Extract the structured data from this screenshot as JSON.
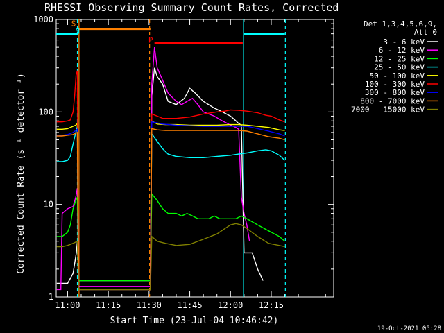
{
  "chart_data": {
    "type": "line",
    "title": "RHESSI Observing Summary Count Rates, Corrected",
    "xlabel": "Start Time (23-Jul-04 10:46:42)",
    "ylabel": "Corrected Count Rate (s⁻¹ detector⁻¹)",
    "y_scale": "log",
    "ylim": [
      1,
      1000
    ],
    "xlim_minutes": [
      -4.2,
      98
    ],
    "x_ticks": [
      {
        "label": "11:00",
        "m": 0
      },
      {
        "label": "11:15",
        "m": 15
      },
      {
        "label": "11:30",
        "m": 30
      },
      {
        "label": "11:45",
        "m": 45
      },
      {
        "label": "12:00",
        "m": 60
      },
      {
        "label": "12:15",
        "m": 75
      }
    ],
    "y_ticks": [
      {
        "label": "1",
        "v": 1
      },
      {
        "label": "10",
        "v": 10
      },
      {
        "label": "100",
        "v": 100
      },
      {
        "label": "1000",
        "v": 1000
      }
    ],
    "legend": {
      "header": [
        "Det 1,3,4,5,6,9,",
        "Att 0"
      ],
      "placement": "right"
    },
    "series": [
      {
        "name": "3 - 6 keV",
        "color": "#ffffff",
        "points": [
          [
            -4,
            1.4
          ],
          [
            0,
            1.4
          ],
          [
            2,
            1.8
          ],
          [
            2.8,
            2.5
          ],
          [
            3.2,
            3
          ],
          [
            3.6,
            4
          ],
          [
            4,
            1.5
          ],
          [
            30.5,
            1.5
          ],
          [
            31,
            150
          ],
          [
            32,
            300
          ],
          [
            33,
            240
          ],
          [
            35,
            200
          ],
          [
            37,
            130
          ],
          [
            40,
            120
          ],
          [
            43,
            140
          ],
          [
            45,
            180
          ],
          [
            47,
            160
          ],
          [
            50,
            130
          ],
          [
            54,
            110
          ],
          [
            57,
            100
          ],
          [
            60,
            90
          ],
          [
            62,
            80
          ],
          [
            63,
            75
          ],
          [
            64,
            72
          ],
          [
            65,
            3
          ],
          [
            68,
            3
          ],
          [
            70,
            2
          ],
          [
            72,
            1.5
          ]
        ]
      },
      {
        "name": "6 - 12 keV",
        "color": "#ff00ff",
        "points": [
          [
            -4,
            1.2
          ],
          [
            -2.5,
            1.2
          ],
          [
            -2,
            8
          ],
          [
            0,
            9
          ],
          [
            2,
            9.5
          ],
          [
            3,
            12
          ],
          [
            3.6,
            15
          ],
          [
            4,
            1.3
          ],
          [
            30.5,
            1.3
          ],
          [
            31,
            200
          ],
          [
            32,
            500
          ],
          [
            33,
            300
          ],
          [
            35,
            220
          ],
          [
            37,
            160
          ],
          [
            40,
            130
          ],
          [
            42,
            120
          ],
          [
            44,
            130
          ],
          [
            46,
            140
          ],
          [
            48,
            120
          ],
          [
            50,
            100
          ],
          [
            54,
            90
          ],
          [
            57,
            80
          ],
          [
            60,
            72
          ],
          [
            62,
            68
          ],
          [
            63,
            65
          ],
          [
            64,
            12
          ],
          [
            65,
            8
          ],
          [
            66,
            6
          ],
          [
            67,
            4
          ]
        ]
      },
      {
        "name": "12 - 25 keV",
        "color": "#00ff00",
        "points": [
          [
            -4,
            4.5
          ],
          [
            -2,
            4.5
          ],
          [
            0,
            5
          ],
          [
            1,
            6
          ],
          [
            2,
            9
          ],
          [
            3,
            11
          ],
          [
            3.6,
            12
          ],
          [
            4,
            1.5
          ],
          [
            30.5,
            1.5
          ],
          [
            31,
            13
          ],
          [
            33,
            11
          ],
          [
            35,
            9
          ],
          [
            37,
            8
          ],
          [
            40,
            8
          ],
          [
            42,
            7.5
          ],
          [
            44,
            8
          ],
          [
            46,
            7.5
          ],
          [
            48,
            7
          ],
          [
            50,
            7
          ],
          [
            52,
            7
          ],
          [
            54,
            7.5
          ],
          [
            56,
            7
          ],
          [
            58,
            7
          ],
          [
            60,
            7
          ],
          [
            62,
            7
          ],
          [
            64,
            7.5
          ],
          [
            66,
            7
          ],
          [
            70,
            6
          ],
          [
            75,
            5
          ],
          [
            78,
            4.5
          ],
          [
            80,
            4
          ]
        ]
      },
      {
        "name": "25 - 50 keV",
        "color": "#00ffff",
        "points": [
          [
            -4,
            29
          ],
          [
            -2,
            29
          ],
          [
            0,
            30
          ],
          [
            1,
            33
          ],
          [
            2,
            45
          ],
          [
            3,
            60
          ],
          [
            3.6,
            70
          ],
          [
            4,
            1.2
          ],
          [
            30.5,
            1.2
          ],
          [
            31,
            58
          ],
          [
            33,
            48
          ],
          [
            35,
            40
          ],
          [
            37,
            35
          ],
          [
            40,
            33
          ],
          [
            45,
            32
          ],
          [
            50,
            32
          ],
          [
            55,
            33
          ],
          [
            60,
            34
          ],
          [
            63,
            35
          ],
          [
            66,
            36
          ],
          [
            70,
            38
          ],
          [
            73,
            39
          ],
          [
            75,
            38
          ],
          [
            78,
            34
          ],
          [
            80,
            30
          ]
        ]
      },
      {
        "name": "50 - 100 keV",
        "color": "#ffff00",
        "points": [
          [
            -4,
            65
          ],
          [
            -2,
            65
          ],
          [
            0,
            66
          ],
          [
            1,
            68
          ],
          [
            2,
            70
          ],
          [
            3,
            72
          ],
          [
            3.6,
            75
          ],
          [
            4,
            1.2
          ],
          [
            30.5,
            1.2
          ],
          [
            31,
            80
          ],
          [
            33,
            74
          ],
          [
            36,
            73
          ],
          [
            40,
            73
          ],
          [
            45,
            72
          ],
          [
            50,
            72
          ],
          [
            55,
            72
          ],
          [
            60,
            73
          ],
          [
            63,
            73
          ],
          [
            66,
            72
          ],
          [
            70,
            70
          ],
          [
            74,
            68
          ],
          [
            76,
            66
          ],
          [
            78,
            64
          ],
          [
            80,
            63
          ]
        ]
      },
      {
        "name": "100 - 300 keV",
        "color": "#ff0000",
        "points": [
          [
            -4,
            78
          ],
          [
            -2,
            78
          ],
          [
            0,
            80
          ],
          [
            1,
            82
          ],
          [
            2,
            100
          ],
          [
            2.6,
            150
          ],
          [
            3.1,
            250
          ],
          [
            3.6,
            280
          ],
          [
            4,
            1.2
          ],
          [
            30.5,
            1.2
          ],
          [
            31,
            95
          ],
          [
            33,
            90
          ],
          [
            35,
            85
          ],
          [
            40,
            85
          ],
          [
            45,
            88
          ],
          [
            50,
            95
          ],
          [
            55,
            100
          ],
          [
            58,
            102
          ],
          [
            60,
            105
          ],
          [
            63,
            104
          ],
          [
            66,
            102
          ],
          [
            70,
            98
          ],
          [
            73,
            92
          ],
          [
            75,
            90
          ],
          [
            78,
            82
          ],
          [
            80,
            78
          ]
        ]
      },
      {
        "name": "300 - 800 keV",
        "color": "#0000ff",
        "points": [
          [
            -4,
            56
          ],
          [
            -2,
            56
          ],
          [
            0,
            57
          ],
          [
            2,
            60
          ],
          [
            3.6,
            65
          ],
          [
            4,
            1.2
          ],
          [
            30.5,
            1.2
          ],
          [
            31,
            78
          ],
          [
            33,
            76
          ],
          [
            35,
            74
          ],
          [
            40,
            72
          ],
          [
            45,
            71
          ],
          [
            50,
            70
          ],
          [
            55,
            70
          ],
          [
            60,
            70
          ],
          [
            63,
            70
          ],
          [
            66,
            70
          ],
          [
            70,
            66
          ],
          [
            74,
            62
          ],
          [
            78,
            58
          ],
          [
            80,
            55
          ]
        ]
      },
      {
        "name": "800 - 7000 keV",
        "color": "#ff8000",
        "points": [
          [
            -4,
            55
          ],
          [
            -2,
            55
          ],
          [
            0,
            56
          ],
          [
            2,
            57
          ],
          [
            3.6,
            60
          ],
          [
            4,
            1.2
          ],
          [
            30.5,
            1.2
          ],
          [
            31,
            66
          ],
          [
            33,
            64
          ],
          [
            36,
            63
          ],
          [
            40,
            63
          ],
          [
            45,
            63
          ],
          [
            50,
            63
          ],
          [
            55,
            63
          ],
          [
            60,
            63
          ],
          [
            63,
            63
          ],
          [
            66,
            62
          ],
          [
            70,
            58
          ],
          [
            74,
            54
          ],
          [
            78,
            52
          ],
          [
            80,
            50
          ]
        ]
      },
      {
        "name": "7000 - 15000 keV",
        "color": "#808000",
        "points": [
          [
            -4,
            3.5
          ],
          [
            -2,
            3.5
          ],
          [
            0,
            3.6
          ],
          [
            2,
            3.8
          ],
          [
            3.6,
            4
          ],
          [
            4,
            1.2
          ],
          [
            30.5,
            1.2
          ],
          [
            31,
            4.5
          ],
          [
            33,
            4
          ],
          [
            36,
            3.8
          ],
          [
            40,
            3.6
          ],
          [
            45,
            3.7
          ],
          [
            50,
            4.2
          ],
          [
            55,
            4.8
          ],
          [
            58,
            5.5
          ],
          [
            60,
            6
          ],
          [
            62,
            6.2
          ],
          [
            64,
            6
          ],
          [
            66,
            5.5
          ],
          [
            70,
            4.5
          ],
          [
            74,
            3.8
          ],
          [
            78,
            3.6
          ],
          [
            80,
            3.5
          ]
        ]
      }
    ],
    "status_bars": [
      {
        "color": "#00ffff",
        "m0": -4.2,
        "m1": 3.8,
        "v": 700
      },
      {
        "color": "#ff8000",
        "m0": 4,
        "m1": 30.5,
        "v": 790
      },
      {
        "color": "#ff0000",
        "m0": 32,
        "m1": 64.5,
        "v": 560
      },
      {
        "color": "#00ffff",
        "m0": 65,
        "m1": 80,
        "v": 700
      }
    ],
    "vertical_lines": [
      {
        "color": "#00ffff",
        "m": 3.6,
        "dashed": true
      },
      {
        "color": "#ff8000",
        "m": 4.2,
        "dashed": false
      },
      {
        "color": "#ff8000",
        "m": 30.2,
        "dashed": true
      },
      {
        "color": "#00ffff",
        "m": 64.8,
        "dashed": false
      },
      {
        "color": "#00ffff",
        "m": 80.2,
        "dashed": true
      }
    ],
    "markers": [
      {
        "text": "S",
        "color": "#ff8000",
        "m": 2.2,
        "v": 850
      },
      {
        "text": "N",
        "color": "#00ffff",
        "m": 3.6,
        "v": 700
      },
      {
        "text": "P",
        "color": "#ff0000",
        "m": 30.6,
        "v": 560
      }
    ]
  },
  "footer": {
    "date_stamp": "19-Oct-2021 05:28"
  }
}
